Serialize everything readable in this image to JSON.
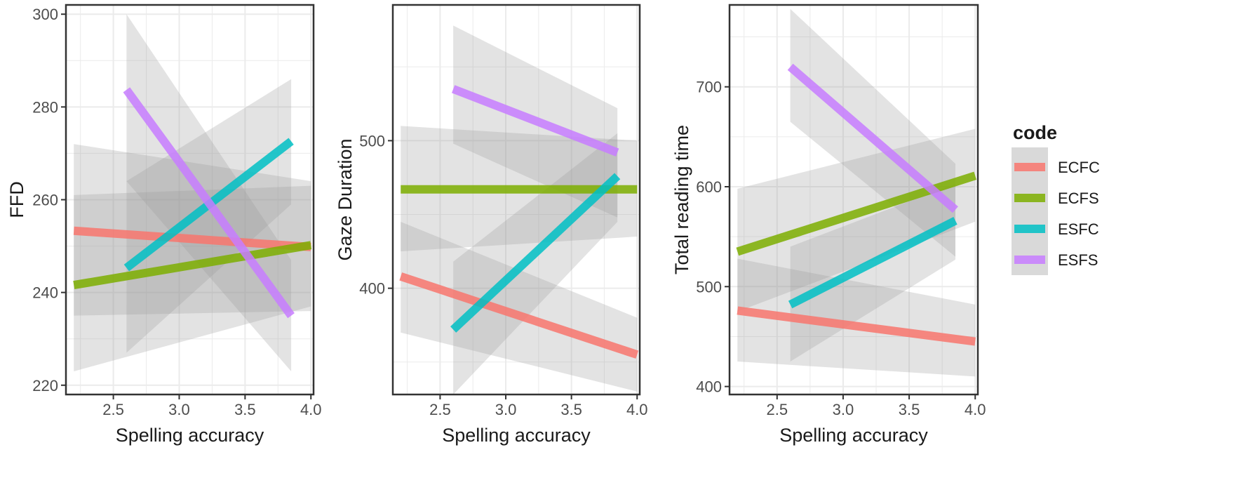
{
  "legend": {
    "title": "code",
    "entries": [
      {
        "name": "ECFC",
        "color": "#F8766D"
      },
      {
        "name": "ECFS",
        "color": "#7CAE00"
      },
      {
        "name": "ESFC",
        "color": "#00BFC4"
      },
      {
        "name": "ESFS",
        "color": "#C77CFF"
      }
    ],
    "placement": "right"
  },
  "chart_data": [
    {
      "type": "line",
      "xlabel": "Spelling accuracy",
      "ylabel": "FFD",
      "xlim": [
        2.14,
        4.02
      ],
      "ylim": [
        218,
        302
      ],
      "x_ticks": [
        "2.5",
        "3.0",
        "3.5",
        "4.0"
      ],
      "y_ticks": [
        "220",
        "240",
        "260",
        "280",
        "300"
      ],
      "grid": true,
      "series": [
        {
          "name": "ECFC",
          "x": [
            2.2,
            4.0
          ],
          "y": [
            253.3,
            249.8
          ],
          "ci_lower": [
            235,
            236
          ],
          "ci_upper": [
            272,
            264
          ]
        },
        {
          "name": "ECFS",
          "x": [
            2.2,
            4.0
          ],
          "y": [
            241.6,
            250.2
          ],
          "ci_lower": [
            223,
            237
          ],
          "ci_upper": [
            261,
            263
          ]
        },
        {
          "name": "ESFC",
          "x": [
            2.6,
            3.85
          ],
          "y": [
            245.3,
            272.6
          ],
          "ci_lower": [
            227,
            259
          ],
          "ci_upper": [
            264,
            286
          ]
        },
        {
          "name": "ESFS",
          "x": [
            2.6,
            3.85
          ],
          "y": [
            283.7,
            235.0
          ],
          "ci_lower": [
            264,
            223
          ],
          "ci_upper": [
            300,
            247
          ]
        }
      ]
    },
    {
      "type": "line",
      "xlabel": "Spelling accuracy",
      "ylabel": "Gaze Duration",
      "xlim": [
        2.14,
        4.02
      ],
      "ylim": [
        328,
        592
      ],
      "x_ticks": [
        "2.5",
        "3.0",
        "3.5",
        "4.0"
      ],
      "y_ticks": [
        "400",
        "500"
      ],
      "grid": true,
      "series": [
        {
          "name": "ECFC",
          "x": [
            2.2,
            4.0
          ],
          "y": [
            408,
            355
          ],
          "ci_lower": [
            370,
            330
          ],
          "ci_upper": [
            445,
            380
          ]
        },
        {
          "name": "ECFS",
          "x": [
            2.2,
            4.0
          ],
          "y": [
            467,
            467
          ],
          "ci_lower": [
            425,
            435
          ],
          "ci_upper": [
            510,
            500
          ]
        },
        {
          "name": "ESFC",
          "x": [
            2.6,
            3.85
          ],
          "y": [
            372,
            476
          ],
          "ci_lower": [
            328,
            445
          ],
          "ci_upper": [
            418,
            505
          ]
        },
        {
          "name": "ESFS",
          "x": [
            2.6,
            3.85
          ],
          "y": [
            535,
            492
          ],
          "ci_lower": [
            498,
            448
          ],
          "ci_upper": [
            578,
            522
          ]
        }
      ]
    },
    {
      "type": "line",
      "xlabel": "Spelling accuracy",
      "ylabel": "Total reading time",
      "xlim": [
        2.14,
        4.02
      ],
      "ylim": [
        392,
        782
      ],
      "x_ticks": [
        "2.5",
        "3.0",
        "3.5",
        "4.0"
      ],
      "y_ticks": [
        "400",
        "500",
        "600",
        "700"
      ],
      "grid": true,
      "series": [
        {
          "name": "ECFC",
          "x": [
            2.2,
            4.0
          ],
          "y": [
            476,
            445
          ],
          "ci_lower": [
            425,
            410
          ],
          "ci_upper": [
            528,
            482
          ]
        },
        {
          "name": "ECFS",
          "x": [
            2.2,
            4.0
          ],
          "y": [
            535,
            611
          ],
          "ci_lower": [
            475,
            565
          ],
          "ci_upper": [
            598,
            658
          ]
        },
        {
          "name": "ESFC",
          "x": [
            2.6,
            3.85
          ],
          "y": [
            482,
            566
          ],
          "ci_lower": [
            425,
            527
          ],
          "ci_upper": [
            540,
            603
          ]
        },
        {
          "name": "ESFS",
          "x": [
            2.6,
            3.85
          ],
          "y": [
            720,
            577
          ],
          "ci_lower": [
            665,
            530
          ],
          "ci_upper": [
            778,
            623
          ]
        }
      ]
    }
  ]
}
